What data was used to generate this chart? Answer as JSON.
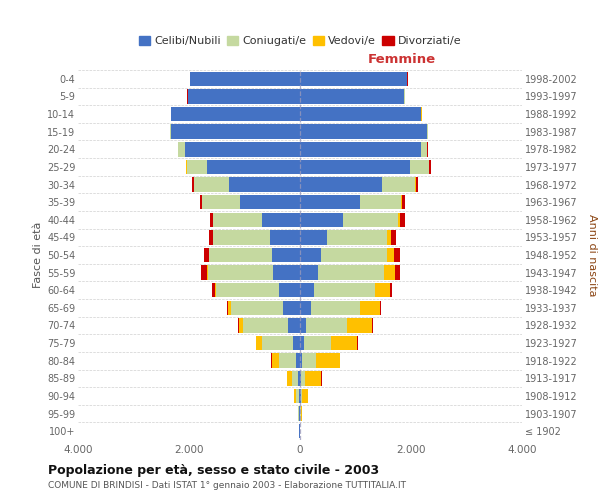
{
  "age_groups": [
    "100+",
    "95-99",
    "90-94",
    "85-89",
    "80-84",
    "75-79",
    "70-74",
    "65-69",
    "60-64",
    "55-59",
    "50-54",
    "45-49",
    "40-44",
    "35-39",
    "30-34",
    "25-29",
    "20-24",
    "15-19",
    "10-14",
    "5-9",
    "0-4"
  ],
  "birth_years": [
    "≤ 1902",
    "1903-1907",
    "1908-1912",
    "1913-1917",
    "1918-1922",
    "1923-1927",
    "1928-1932",
    "1933-1937",
    "1938-1942",
    "1943-1947",
    "1948-1952",
    "1953-1957",
    "1958-1962",
    "1963-1967",
    "1968-1972",
    "1973-1977",
    "1978-1982",
    "1983-1987",
    "1988-1992",
    "1993-1997",
    "1998-2002"
  ],
  "male_celibi": [
    10,
    15,
    25,
    40,
    70,
    120,
    220,
    300,
    380,
    480,
    510,
    540,
    680,
    1080,
    1280,
    1680,
    2080,
    2320,
    2320,
    2020,
    1980
  ],
  "male_coniugati": [
    3,
    15,
    40,
    110,
    300,
    560,
    800,
    950,
    1130,
    1180,
    1130,
    1030,
    880,
    680,
    630,
    360,
    110,
    20,
    5,
    3,
    3
  ],
  "male_vedovi": [
    1,
    8,
    45,
    90,
    140,
    110,
    75,
    45,
    25,
    15,
    8,
    3,
    3,
    3,
    3,
    8,
    3,
    3,
    3,
    3,
    3
  ],
  "male_divorziati": [
    1,
    2,
    3,
    3,
    8,
    8,
    25,
    25,
    55,
    110,
    90,
    75,
    55,
    45,
    35,
    15,
    8,
    3,
    3,
    3,
    3
  ],
  "female_celibi": [
    3,
    8,
    15,
    25,
    40,
    70,
    110,
    190,
    260,
    330,
    380,
    480,
    780,
    1080,
    1480,
    1980,
    2180,
    2280,
    2180,
    1880,
    1930
  ],
  "female_coniugati": [
    2,
    10,
    25,
    70,
    240,
    490,
    740,
    890,
    1090,
    1190,
    1190,
    1090,
    990,
    740,
    590,
    340,
    110,
    25,
    8,
    3,
    3
  ],
  "female_vedovi": [
    3,
    25,
    110,
    290,
    440,
    470,
    440,
    360,
    270,
    190,
    120,
    70,
    40,
    25,
    15,
    8,
    3,
    3,
    3,
    3,
    3
  ],
  "female_divorziati": [
    1,
    1,
    3,
    8,
    8,
    8,
    18,
    18,
    45,
    95,
    120,
    95,
    75,
    55,
    45,
    25,
    12,
    3,
    3,
    3,
    3
  ],
  "colors": {
    "celibi": "#4472c4",
    "coniugati": "#c5d9a0",
    "vedovi": "#ffc000",
    "divorziati": "#cc0000"
  },
  "xlim": 4000,
  "title": "Popolazione per età, sesso e stato civile - 2003",
  "subtitle": "COMUNE DI BRINDISI - Dati ISTAT 1° gennaio 2003 - Elaborazione TUTTITALIA.IT",
  "ylabel_left": "Fasce di età",
  "ylabel_right": "Anni di nascita",
  "xlabel_right": "Femmine",
  "legend_labels": [
    "Celibi/Nubili",
    "Coniugati/e",
    "Vedovi/e",
    "Divorziati/e"
  ],
  "background_color": "#ffffff",
  "grid_color": "#cccccc"
}
